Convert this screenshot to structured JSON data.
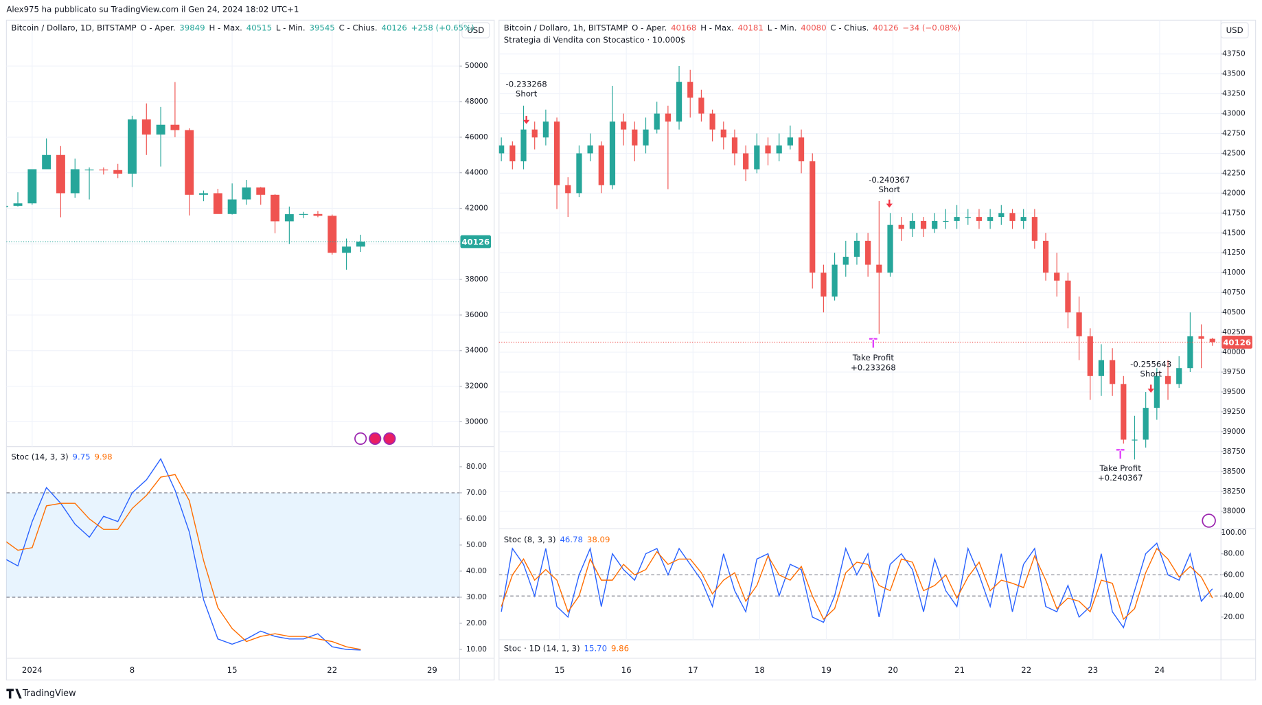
{
  "header": "Alex975 ha pubblicato su TradingView.com il Gen 24, 2024 18:02 UTC+1",
  "footer": "TradingView",
  "chart_data": [
    {
      "type": "candlestick",
      "title": "Bitcoin / Dollaro, 1D, BITSTAMP",
      "currency": "USD",
      "ohlc_labels": [
        "O - Aper.",
        "H - Max.",
        "L - Min.",
        "C - Chius."
      ],
      "change": "+258 (+0.65%)",
      "categories": [
        null,
        null,
        "2024",
        null,
        null,
        null,
        null,
        null,
        null,
        "8",
        null,
        null,
        null,
        null,
        null,
        null,
        "15",
        null,
        null,
        null,
        null,
        null,
        null,
        "22",
        null,
        null,
        null,
        null,
        null,
        null,
        "29",
        null
      ],
      "open": [
        42070,
        42140,
        42280,
        44200,
        45000,
        42850,
        44150,
        44180,
        44150,
        43950,
        47000,
        46150,
        46700,
        46400,
        42760,
        42850,
        41680,
        42500,
        43170,
        42760,
        41270,
        41670,
        41680,
        41580,
        39500,
        39849,
        null,
        null,
        null,
        null,
        null,
        null
      ],
      "high": [
        42150,
        42900,
        44200,
        45930,
        45500,
        44800,
        44300,
        44300,
        44500,
        47200,
        47900,
        47700,
        49100,
        46500,
        43000,
        43100,
        43400,
        43600,
        43200,
        42800,
        42100,
        41800,
        41850,
        41650,
        40300,
        40515,
        null,
        null,
        null,
        null,
        null,
        null
      ],
      "low": [
        42000,
        42100,
        42200,
        44200,
        41500,
        42600,
        42500,
        43900,
        43700,
        43200,
        45000,
        44350,
        46000,
        41600,
        42400,
        41800,
        41650,
        42200,
        42200,
        40600,
        40000,
        41450,
        41500,
        39400,
        38550,
        39545,
        null,
        null,
        null,
        null,
        null,
        null
      ],
      "close": [
        42140,
        42280,
        44200,
        45000,
        42850,
        44200,
        44180,
        44150,
        43950,
        47000,
        46150,
        46700,
        46400,
        42760,
        42850,
        41680,
        42500,
        43170,
        42760,
        41270,
        41670,
        41680,
        41580,
        39500,
        39849,
        40126,
        null,
        null,
        null,
        null,
        null,
        null
      ],
      "up_color": "#26a69a",
      "down_color": "#ef5350",
      "ylim": [
        28600,
        52580
      ],
      "yticks": [
        30000,
        32000,
        34000,
        36000,
        38000,
        40000,
        42000,
        44000,
        46000,
        48000,
        50000
      ],
      "grid": true
    },
    {
      "type": "line",
      "legend_title": "Stoc (14, 3, 3)",
      "series": [
        {
          "name": "%K",
          "color": "#2962ff",
          "values": [
            45,
            42,
            59,
            72,
            66,
            58,
            53,
            61,
            59,
            70,
            75,
            83,
            71,
            55,
            29,
            14,
            12,
            14,
            17,
            15,
            14,
            14,
            16,
            11,
            10,
            9.75,
            null,
            null,
            null,
            null,
            null,
            null
          ]
        },
        {
          "name": "%D",
          "color": "#ff6d00",
          "values": [
            52,
            48,
            49,
            65,
            66,
            66,
            60,
            56,
            56,
            64,
            69,
            76,
            77,
            67,
            44,
            26,
            18,
            13,
            15,
            16,
            15,
            15,
            14,
            13,
            11,
            9.98,
            null,
            null,
            null,
            null,
            null,
            null
          ]
        }
      ],
      "hlines": [
        30,
        70
      ],
      "band_fill": true,
      "ylim": [
        6.6,
        87.7
      ],
      "yticks": [
        {
          "value": 10,
          "label": "10.00"
        },
        {
          "value": 20,
          "label": "20.00"
        },
        {
          "value": 30,
          "label": "30.00"
        },
        {
          "value": 40,
          "label": "40.00"
        },
        {
          "value": 50,
          "label": "50.00"
        },
        {
          "value": 60,
          "label": "60.00"
        },
        {
          "value": 70,
          "label": "70.00"
        },
        {
          "value": 80,
          "label": "80.00"
        }
      ]
    },
    {
      "type": "candlestick",
      "title": "Bitcoin / Dollaro, 1h, BITSTAMP",
      "subtitle": "Strategia di Vendita con Stocastico · 10.000$",
      "currency": "USD",
      "ohlc_labels": [
        "O - Aper.",
        "H - Max.",
        "L - Min.",
        "C - Chius."
      ],
      "change": "−34 (−0.08%)",
      "annotations": [
        [
          "-0.233268",
          "Short"
        ],
        [
          "-0.240367",
          "Short"
        ],
        [
          "-0.255643",
          "Short"
        ],
        [
          "Take Profit",
          "+0.233268"
        ],
        [
          "Take Profit",
          "+0.240367"
        ]
      ],
      "x": [
        14.125,
        14.2917,
        14.4583,
        14.625,
        14.7917,
        14.9583,
        15.125,
        15.2917,
        15.4583,
        15.625,
        15.7917,
        15.9583,
        16.125,
        16.2917,
        16.4583,
        16.625,
        16.7917,
        16.9583,
        17.125,
        17.2917,
        17.4583,
        17.625,
        17.7917,
        17.9583,
        18.125,
        18.2917,
        18.4583,
        18.625,
        18.7917,
        18.9583,
        19.125,
        19.2917,
        19.4583,
        19.625,
        19.7917,
        19.9583,
        20.125,
        20.2917,
        20.4583,
        20.625,
        20.7917,
        20.9583,
        21.125,
        21.2917,
        21.4583,
        21.625,
        21.7917,
        21.9583,
        22.125,
        22.2917,
        22.4583,
        22.625,
        22.7917,
        22.9583,
        23.125,
        23.2917,
        23.4583,
        23.625,
        23.7917,
        23.9583,
        24.125,
        24.2917,
        24.4583,
        24.625,
        24.7917
      ],
      "open": [
        42500,
        42600,
        42400,
        42800,
        42700,
        42900,
        42100,
        42000,
        42500,
        42600,
        42100,
        42900,
        42800,
        42600,
        42800,
        43000,
        42900,
        43400,
        43200,
        43000,
        42800,
        42700,
        42500,
        42300,
        42600,
        42500,
        42600,
        42700,
        42400,
        41000,
        40700,
        41100,
        41200,
        41400,
        41100,
        41000,
        41600,
        41550,
        41650,
        41550,
        41650,
        41650,
        41700,
        41700,
        41650,
        41700,
        41750,
        41650,
        41700,
        41400,
        41000,
        40900,
        40500,
        40200,
        39700,
        39900,
        39600,
        38900,
        38900,
        39300,
        39700,
        39600,
        39800,
        40200,
        40168
      ],
      "high": [
        42700,
        42650,
        43100,
        42900,
        43050,
        42950,
        42200,
        42600,
        42750,
        42650,
        43350,
        43000,
        42900,
        42950,
        43150,
        43100,
        43600,
        43550,
        43300,
        43050,
        42900,
        42800,
        42600,
        42750,
        42700,
        42750,
        42850,
        42800,
        42500,
        41100,
        41250,
        41400,
        41500,
        41500,
        41900,
        41750,
        41700,
        41750,
        41700,
        41750,
        41800,
        41850,
        41800,
        41800,
        41800,
        41850,
        41800,
        41800,
        41800,
        41500,
        41250,
        41000,
        40700,
        40300,
        40100,
        40050,
        39700,
        39200,
        39500,
        39800,
        39900,
        39950,
        40500,
        40350,
        40181
      ],
      "low": [
        42400,
        42300,
        42300,
        42550,
        42600,
        41800,
        41700,
        41950,
        42400,
        42000,
        42050,
        42600,
        42400,
        42500,
        42750,
        42050,
        42800,
        42950,
        42900,
        42650,
        42550,
        42350,
        42150,
        42250,
        42350,
        42400,
        42550,
        42250,
        40800,
        40500,
        40650,
        40950,
        41100,
        40950,
        40230,
        40950,
        41400,
        41450,
        41450,
        41500,
        41550,
        41550,
        41600,
        41550,
        41550,
        41600,
        41550,
        41550,
        41300,
        40900,
        40700,
        40300,
        39900,
        39400,
        39450,
        39450,
        38850,
        38650,
        38800,
        39150,
        39400,
        39550,
        39750,
        39800,
        40080
      ],
      "close": [
        42600,
        42400,
        42800,
        42700,
        42900,
        42100,
        42000,
        42500,
        42600,
        42100,
        42900,
        42800,
        42600,
        42800,
        43000,
        42900,
        43400,
        43200,
        43000,
        42800,
        42700,
        42500,
        42300,
        42600,
        42500,
        42600,
        42700,
        42400,
        41000,
        40700,
        41100,
        41200,
        41400,
        41100,
        41000,
        41600,
        41550,
        41650,
        41550,
        41650,
        41650,
        41700,
        41700,
        41650,
        41700,
        41750,
        41650,
        41700,
        41400,
        41000,
        40900,
        40500,
        40200,
        39700,
        39900,
        39600,
        38900,
        38900,
        39300,
        39700,
        39600,
        39800,
        40200,
        40168,
        40126
      ],
      "up_color": "#26a69a",
      "down_color": "#ef5350",
      "xlim": [
        14.09,
        24.92
      ],
      "xticks": [
        15,
        16,
        17,
        18,
        19,
        20,
        21,
        22,
        23,
        24
      ],
      "ylim": [
        37780,
        44175
      ],
      "yticks": [
        38000,
        38250,
        38500,
        38750,
        39000,
        39250,
        39500,
        39750,
        40000,
        40250,
        40500,
        40750,
        41000,
        41250,
        41500,
        41750,
        42000,
        42250,
        42500,
        42750,
        43000,
        43250,
        43500,
        43750
      ],
      "grid": true
    },
    {
      "type": "line",
      "legend_title": "Stoc (8, 3, 3)",
      "secondary_legend": {
        "name": "Stoc · 1D (14, 1, 3)",
        "values": [
          {
            "value": 15.7,
            "label": "15.70"
          },
          {
            "value": 9.86,
            "label": "9.86"
          }
        ]
      },
      "x": [
        14.125,
        14.2917,
        14.4583,
        14.625,
        14.7917,
        14.9583,
        15.125,
        15.2917,
        15.4583,
        15.625,
        15.7917,
        15.9583,
        16.125,
        16.2917,
        16.4583,
        16.625,
        16.7917,
        16.9583,
        17.125,
        17.2917,
        17.4583,
        17.625,
        17.7917,
        17.9583,
        18.125,
        18.2917,
        18.4583,
        18.625,
        18.7917,
        18.9583,
        19.125,
        19.2917,
        19.4583,
        19.625,
        19.7917,
        19.9583,
        20.125,
        20.2917,
        20.4583,
        20.625,
        20.7917,
        20.9583,
        21.125,
        21.2917,
        21.4583,
        21.625,
        21.7917,
        21.9583,
        22.125,
        22.2917,
        22.4583,
        22.625,
        22.7917,
        22.9583,
        23.125,
        23.2917,
        23.4583,
        23.625,
        23.7917,
        23.9583,
        24.125,
        24.2917,
        24.4583,
        24.625,
        24.7917
      ],
      "series": [
        {
          "name": "%K",
          "color": "#2962ff",
          "values": [
            25,
            85,
            70,
            40,
            85,
            30,
            20,
            60,
            85,
            30,
            80,
            65,
            55,
            80,
            85,
            60,
            85,
            70,
            55,
            30,
            80,
            45,
            25,
            75,
            80,
            40,
            70,
            65,
            20,
            15,
            40,
            85,
            60,
            80,
            20,
            70,
            80,
            65,
            25,
            75,
            45,
            30,
            85,
            60,
            30,
            80,
            25,
            70,
            85,
            30,
            25,
            50,
            20,
            30,
            80,
            25,
            10,
            45,
            80,
            90,
            60,
            55,
            80,
            35,
            46.78
          ]
        },
        {
          "name": "%D",
          "color": "#ff6d00",
          "values": [
            30,
            60,
            75,
            55,
            65,
            55,
            25,
            40,
            75,
            55,
            55,
            70,
            60,
            65,
            82,
            70,
            75,
            75,
            62,
            42,
            55,
            62,
            35,
            50,
            78,
            60,
            55,
            68,
            40,
            18,
            28,
            62,
            72,
            70,
            50,
            45,
            75,
            72,
            45,
            50,
            60,
            38,
            58,
            72,
            45,
            55,
            52,
            48,
            78,
            55,
            28,
            38,
            35,
            25,
            55,
            52,
            18,
            28,
            62,
            85,
            75,
            58,
            68,
            58,
            38.09
          ]
        }
      ],
      "hlines": [
        40,
        60
      ],
      "band_fill": false,
      "xlim": [
        14.09,
        24.92
      ],
      "ylim": [
        0,
        103
      ],
      "yticks": [
        {
          "value": 20,
          "label": "20.00"
        },
        {
          "value": 40,
          "label": "40.00"
        },
        {
          "value": 60,
          "label": "60.00"
        },
        {
          "value": 80,
          "label": "80.00"
        },
        {
          "value": 100,
          "label": "100.00"
        }
      ]
    }
  ]
}
